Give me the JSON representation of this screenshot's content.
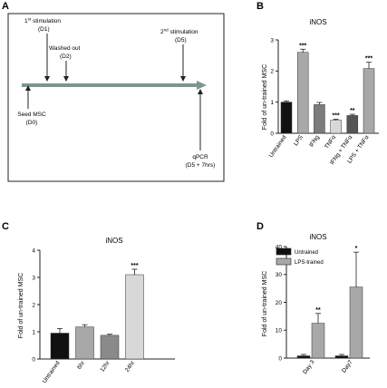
{
  "chart_data": [
    {
      "type": "timeline",
      "panel_letter": "A",
      "events": [
        {
          "label": "Seed MSC",
          "sub": "(D0)",
          "day": 0
        },
        {
          "label": "1st stimulation",
          "sup": "st",
          "base": "1",
          "rest": " stimulation",
          "sub": "(D1)",
          "day": 1
        },
        {
          "label": "Washed out",
          "sub": "(D2)",
          "day": 2
        },
        {
          "label": "2nd stimulation",
          "sup": "nd",
          "base": "2",
          "rest": " stimulation",
          "sub": "(D5)",
          "day": 5
        },
        {
          "label": "qPCR",
          "sub": "(D5 + 7hrs)",
          "day": 5.3
        }
      ]
    },
    {
      "type": "bar",
      "panel_letter": "B",
      "title": "iNOS",
      "ylabel": "Fold of un-trained MSC",
      "categories": [
        "Untrained",
        "LPS",
        "IFNg",
        "TNFα",
        "IFNg + TNFα",
        "LPS + TNFα"
      ],
      "values": [
        1.0,
        2.6,
        0.92,
        0.42,
        0.57,
        2.08
      ],
      "errors": [
        0.04,
        0.1,
        0.07,
        0.03,
        0.04,
        0.2
      ],
      "significance": [
        "",
        "***",
        "",
        "***",
        "**",
        "***"
      ],
      "colors": [
        "#111111",
        "#a8a8a8",
        "#7c7c7c",
        "#d8d8d8",
        "#555555",
        "#a8a8a8"
      ],
      "ylim": [
        0,
        3
      ],
      "yticks": [
        "0",
        "1",
        "2",
        "3"
      ]
    },
    {
      "type": "bar",
      "panel_letter": "C",
      "title": "iNOS",
      "ylabel": "Fold of un-trained MSC",
      "categories": [
        "Untrained",
        "6hr",
        "12hr",
        "24hr"
      ],
      "values": [
        0.95,
        1.18,
        0.87,
        3.1
      ],
      "errors": [
        0.17,
        0.08,
        0.04,
        0.2
      ],
      "significance": [
        "",
        "",
        "",
        "***"
      ],
      "colors": [
        "#111111",
        "#a8a8a8",
        "#8a8a8a",
        "#d8d8d8"
      ],
      "ylim": [
        0,
        4
      ],
      "yticks": [
        "0",
        "1",
        "2",
        "3",
        "4"
      ]
    },
    {
      "type": "bar",
      "panel_letter": "D",
      "title": "iNOS",
      "ylabel": "Fold of un-trained MSC",
      "categories": [
        "Day 3",
        "Day7"
      ],
      "series": [
        {
          "name": "Untrained",
          "values": [
            0.8,
            0.8
          ],
          "errors": [
            0.5,
            0.5
          ],
          "color": "#111111"
        },
        {
          "name": "LPS-trained",
          "values": [
            12.5,
            25.5
          ],
          "errors": [
            3.5,
            12.5
          ],
          "color": "#a8a8a8"
        }
      ],
      "significance": [
        "**",
        "*"
      ],
      "ylim": [
        0,
        40
      ],
      "yticks": [
        "0",
        "10",
        "20",
        "30",
        "40"
      ],
      "legend_position": "top-left"
    }
  ]
}
